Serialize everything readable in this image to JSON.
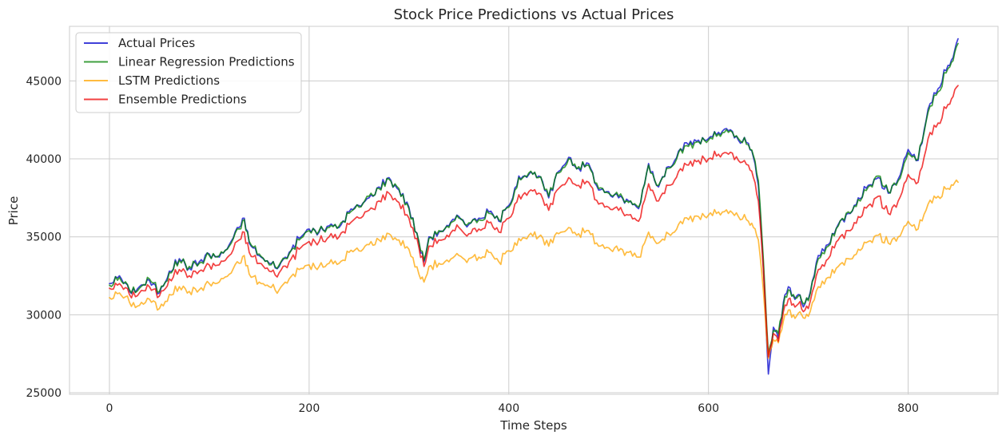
{
  "chart_data": {
    "type": "line",
    "title": "Stock Price Predictions vs Actual Prices",
    "xlabel": "Time Steps",
    "ylabel": "Price",
    "xlim": [
      -40,
      890
    ],
    "ylim": [
      24900,
      48500
    ],
    "x_ticks": [
      0,
      200,
      400,
      600,
      800
    ],
    "y_ticks": [
      25000,
      30000,
      35000,
      40000,
      45000
    ],
    "grid": true,
    "legend_position": "top-left",
    "series": [
      {
        "name": "Actual Prices",
        "color": "#0000cc",
        "opacity": 0.75,
        "x": [
          0,
          10,
          20,
          30,
          40,
          50,
          60,
          70,
          80,
          90,
          100,
          110,
          120,
          130,
          135,
          140,
          150,
          160,
          170,
          180,
          190,
          200,
          210,
          220,
          230,
          240,
          250,
          260,
          270,
          280,
          290,
          300,
          310,
          315,
          320,
          330,
          340,
          350,
          360,
          370,
          380,
          390,
          400,
          410,
          420,
          430,
          440,
          450,
          460,
          470,
          480,
          490,
          500,
          510,
          520,
          530,
          540,
          550,
          560,
          570,
          580,
          590,
          600,
          610,
          620,
          630,
          640,
          645,
          650,
          655,
          660,
          665,
          670,
          675,
          680,
          685,
          690,
          695,
          700,
          710,
          720,
          730,
          740,
          750,
          760,
          770,
          780,
          790,
          800,
          810,
          820,
          830,
          840,
          845,
          850
        ],
        "y": [
          32000,
          32500,
          31500,
          31800,
          32200,
          31400,
          32800,
          33600,
          33000,
          33400,
          33900,
          33700,
          34500,
          35600,
          36200,
          34600,
          33800,
          33300,
          33100,
          34000,
          34900,
          35500,
          35300,
          35700,
          35600,
          36600,
          37000,
          37500,
          38200,
          38800,
          38000,
          36900,
          34600,
          33400,
          35000,
          35300,
          35700,
          36300,
          35800,
          36200,
          36600,
          36000,
          37000,
          38900,
          39000,
          38900,
          37500,
          39200,
          40100,
          39400,
          39700,
          38000,
          37900,
          37500,
          37300,
          36800,
          39700,
          38200,
          39500,
          40500,
          40900,
          41200,
          41300,
          41700,
          41800,
          41200,
          41000,
          40100,
          38300,
          33000,
          26200,
          29200,
          28500,
          30800,
          31800,
          31200,
          31300,
          30500,
          31000,
          33800,
          34500,
          35800,
          36500,
          37500,
          38300,
          38800,
          37800,
          38700,
          40600,
          39900,
          43200,
          44500,
          46000,
          46500,
          47700
        ]
      },
      {
        "name": "Linear Regression Predictions",
        "color": "#008000",
        "opacity": 0.75,
        "x": [
          0,
          10,
          20,
          30,
          40,
          50,
          60,
          70,
          80,
          90,
          100,
          110,
          120,
          130,
          135,
          140,
          150,
          160,
          170,
          180,
          190,
          200,
          210,
          220,
          230,
          240,
          250,
          260,
          270,
          280,
          290,
          300,
          310,
          315,
          320,
          330,
          340,
          350,
          360,
          370,
          380,
          390,
          400,
          410,
          420,
          430,
          440,
          450,
          460,
          470,
          480,
          490,
          500,
          510,
          520,
          530,
          540,
          550,
          560,
          570,
          580,
          590,
          600,
          610,
          620,
          630,
          640,
          645,
          650,
          655,
          660,
          665,
          670,
          675,
          680,
          685,
          690,
          695,
          700,
          710,
          720,
          730,
          740,
          750,
          760,
          770,
          780,
          790,
          800,
          810,
          820,
          830,
          840,
          845,
          850
        ],
        "y": [
          31900,
          32400,
          31600,
          31700,
          32300,
          31500,
          32700,
          33500,
          33100,
          33300,
          33800,
          33800,
          34400,
          35500,
          36100,
          34700,
          33900,
          33200,
          33200,
          33900,
          34800,
          35400,
          35400,
          35600,
          35700,
          36500,
          36900,
          37600,
          38100,
          38700,
          38100,
          36800,
          34700,
          33500,
          34900,
          35400,
          35600,
          36200,
          35900,
          36100,
          36500,
          36100,
          36900,
          38800,
          39100,
          38800,
          37600,
          39100,
          40000,
          39500,
          39600,
          38100,
          37800,
          37600,
          37200,
          36900,
          39600,
          38300,
          39400,
          40400,
          40800,
          41100,
          41200,
          41600,
          41700,
          41300,
          40900,
          40200,
          38600,
          33500,
          27500,
          29000,
          28800,
          30600,
          31600,
          31300,
          31200,
          30700,
          30900,
          33600,
          34400,
          35700,
          36600,
          37400,
          38200,
          38900,
          37900,
          38600,
          40400,
          40000,
          43000,
          44300,
          45800,
          46300,
          47400
        ]
      },
      {
        "name": "LSTM Predictions",
        "color": "#ffa500",
        "opacity": 0.75,
        "x": [
          0,
          10,
          20,
          30,
          40,
          50,
          60,
          70,
          80,
          90,
          100,
          110,
          120,
          130,
          135,
          140,
          150,
          160,
          170,
          180,
          190,
          200,
          210,
          220,
          230,
          240,
          250,
          260,
          270,
          280,
          290,
          300,
          310,
          315,
          320,
          330,
          340,
          350,
          360,
          370,
          380,
          390,
          400,
          410,
          420,
          430,
          440,
          450,
          460,
          470,
          480,
          490,
          500,
          510,
          520,
          530,
          540,
          550,
          560,
          570,
          580,
          590,
          600,
          610,
          620,
          630,
          640,
          645,
          650,
          655,
          660,
          665,
          670,
          675,
          680,
          685,
          690,
          695,
          700,
          710,
          720,
          730,
          740,
          750,
          760,
          770,
          780,
          790,
          800,
          810,
          820,
          830,
          840,
          845,
          850
        ],
        "y": [
          31100,
          31400,
          30800,
          30600,
          31000,
          30400,
          31300,
          31800,
          31500,
          31600,
          32000,
          32100,
          32600,
          33300,
          33800,
          32600,
          32100,
          31800,
          31600,
          32300,
          32900,
          33200,
          33100,
          33300,
          33300,
          34000,
          34100,
          34500,
          34800,
          35200,
          34800,
          34200,
          32600,
          32100,
          33100,
          33300,
          33400,
          33800,
          33600,
          33700,
          34000,
          33400,
          34100,
          34900,
          35100,
          35000,
          34400,
          35200,
          35600,
          35200,
          35400,
          34400,
          34300,
          34100,
          34000,
          33700,
          35300,
          34600,
          35200,
          35800,
          36100,
          36300,
          36400,
          36600,
          36500,
          36300,
          36000,
          35600,
          34800,
          31500,
          27200,
          28400,
          28200,
          29600,
          30300,
          30000,
          30100,
          29800,
          29900,
          31800,
          32400,
          33100,
          33600,
          34200,
          34700,
          35100,
          34600,
          35000,
          36000,
          35500,
          37100,
          37600,
          38100,
          38300,
          38500
        ]
      },
      {
        "name": "Ensemble Predictions",
        "color": "#ee0000",
        "opacity": 0.75,
        "x": [
          0,
          10,
          20,
          30,
          40,
          50,
          60,
          70,
          80,
          90,
          100,
          110,
          120,
          130,
          135,
          140,
          150,
          160,
          170,
          180,
          190,
          200,
          210,
          220,
          230,
          240,
          250,
          260,
          270,
          280,
          290,
          300,
          310,
          315,
          320,
          330,
          340,
          350,
          360,
          370,
          380,
          390,
          400,
          410,
          420,
          430,
          440,
          450,
          460,
          470,
          480,
          490,
          500,
          510,
          520,
          530,
          540,
          550,
          560,
          570,
          580,
          590,
          600,
          610,
          620,
          630,
          640,
          645,
          650,
          655,
          660,
          665,
          670,
          675,
          680,
          685,
          690,
          695,
          700,
          710,
          720,
          730,
          740,
          750,
          760,
          770,
          780,
          790,
          800,
          810,
          820,
          830,
          840,
          845,
          850
        ],
        "y": [
          31700,
          32000,
          31300,
          31400,
          31800,
          31200,
          32300,
          32900,
          32500,
          32800,
          33200,
          33200,
          33800,
          34800,
          35300,
          34000,
          33300,
          32800,
          32700,
          33400,
          34200,
          34700,
          34700,
          35000,
          35000,
          35800,
          36200,
          36700,
          37300,
          37800,
          37200,
          36200,
          34300,
          33100,
          34400,
          34800,
          35000,
          35600,
          35200,
          35500,
          35900,
          35300,
          36200,
          37700,
          37900,
          37800,
          36700,
          38100,
          38800,
          38300,
          38500,
          37100,
          36900,
          36700,
          36400,
          36000,
          38400,
          37300,
          38300,
          39200,
          39600,
          39900,
          40000,
          40300,
          40300,
          39900,
          39600,
          38800,
          37300,
          32900,
          27300,
          28800,
          28300,
          30200,
          31000,
          30700,
          30700,
          30200,
          30400,
          32900,
          33600,
          34800,
          35400,
          36300,
          37000,
          37600,
          36500,
          37300,
          39000,
          38500,
          41300,
          42300,
          43500,
          44000,
          44700
        ]
      }
    ]
  }
}
